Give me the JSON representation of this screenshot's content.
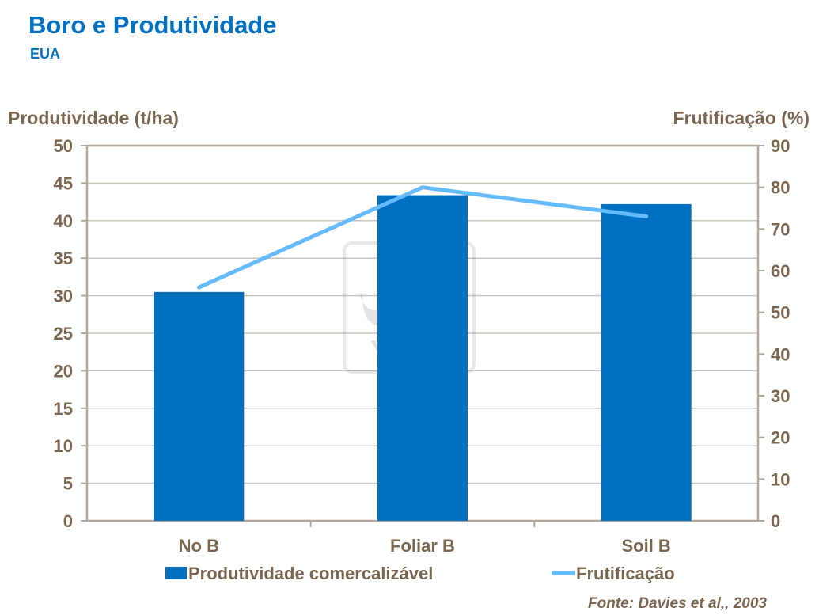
{
  "header": {
    "title": "Boro e Produtividade",
    "subtitle": "EUA"
  },
  "source": "Fonte: Davies et al,, 2003",
  "watermark": {
    "text": "YARA"
  },
  "chart_data": {
    "type": "bar",
    "categories": [
      "No B",
      "Foliar B",
      "Soil B"
    ],
    "series": [
      {
        "name": "Produtividade comercalizável",
        "type": "bar",
        "axis": "left",
        "color": "#0070c0",
        "values": [
          30.5,
          43.4,
          42.2
        ]
      },
      {
        "name": "Frutificação",
        "type": "line",
        "axis": "right",
        "color": "#66bbff",
        "values": [
          56,
          80,
          73
        ]
      }
    ],
    "ylabel": "Produtividade (t/ha)",
    "y2label": "Frutificação (%)",
    "ylim": [
      0,
      50
    ],
    "yticks": [
      0,
      5,
      10,
      15,
      20,
      25,
      30,
      35,
      40,
      45,
      50
    ],
    "y2lim": [
      0,
      90
    ],
    "y2ticks": [
      0,
      10,
      20,
      30,
      40,
      50,
      60,
      70,
      80,
      90
    ],
    "grid": true,
    "legend": "bottom"
  }
}
